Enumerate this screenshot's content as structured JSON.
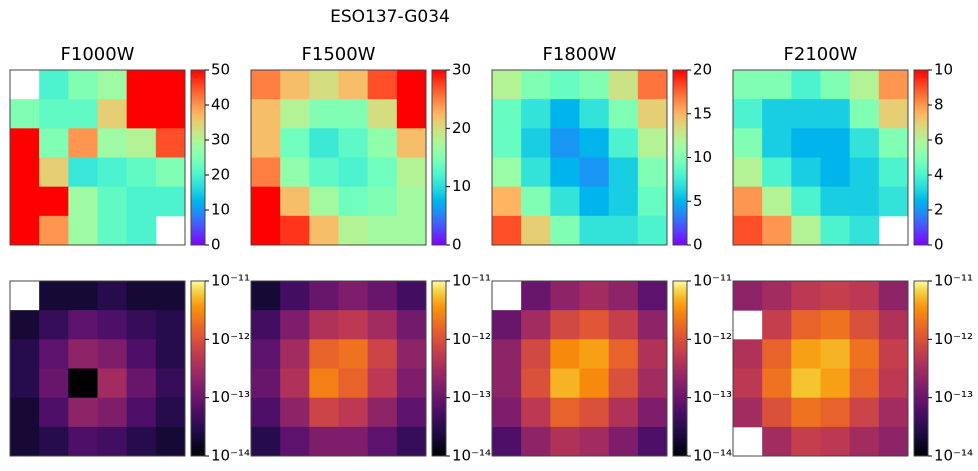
{
  "title": "ESO137-G034",
  "chart_data": [
    {
      "type": "heatmap",
      "title": "F1000W",
      "colormap": "rainbow",
      "zlim": [
        0,
        50
      ],
      "zticks": [
        0,
        10,
        20,
        30,
        40,
        50
      ],
      "values": [
        [
          null,
          20,
          25,
          28,
          50,
          50
        ],
        [
          25,
          22,
          22,
          35,
          50,
          50
        ],
        [
          50,
          25,
          40,
          28,
          30,
          45
        ],
        [
          50,
          35,
          18,
          20,
          22,
          25
        ],
        [
          50,
          50,
          28,
          22,
          20,
          20
        ],
        [
          50,
          40,
          28,
          22,
          20,
          null
        ]
      ]
    },
    {
      "type": "heatmap",
      "title": "F1500W",
      "colormap": "rainbow",
      "zlim": [
        0,
        30
      ],
      "zticks": [
        0,
        10,
        20,
        30
      ],
      "values": [
        [
          25,
          22,
          20,
          22,
          27,
          30
        ],
        [
          22,
          18,
          15,
          15,
          20,
          30
        ],
        [
          22,
          14,
          11,
          13,
          16,
          22
        ],
        [
          25,
          16,
          13,
          12,
          14,
          18
        ],
        [
          30,
          22,
          17,
          14,
          15,
          17
        ],
        [
          30,
          28,
          22,
          18,
          17,
          17
        ]
      ]
    },
    {
      "type": "heatmap",
      "title": "F1800W",
      "colormap": "rainbow",
      "zlim": [
        0,
        20
      ],
      "zticks": [
        0,
        5,
        10,
        15,
        20
      ],
      "values": [
        [
          12,
          10,
          9,
          10,
          13,
          17
        ],
        [
          9,
          7,
          5,
          7,
          10,
          14
        ],
        [
          9,
          6,
          4,
          5,
          8,
          12
        ],
        [
          11,
          7,
          5,
          4,
          6,
          10
        ],
        [
          15,
          10,
          7,
          5,
          6,
          9
        ],
        [
          18,
          14,
          10,
          7,
          7,
          8
        ]
      ]
    },
    {
      "type": "heatmap",
      "title": "F2100W",
      "colormap": "rainbow",
      "zlim": [
        0,
        10
      ],
      "zticks": [
        0,
        2,
        4,
        6,
        8,
        10
      ],
      "values": [
        [
          5,
          5,
          4,
          5,
          6,
          8
        ],
        [
          4,
          3,
          3,
          3,
          5,
          7
        ],
        [
          5,
          3,
          2.5,
          2.5,
          3.5,
          5
        ],
        [
          6,
          4,
          3,
          2.5,
          3,
          4
        ],
        [
          8,
          6,
          4,
          3,
          3,
          3.5
        ],
        [
          9,
          8,
          6,
          4,
          3.5,
          null
        ]
      ]
    },
    {
      "type": "heatmap",
      "colormap": "inferno",
      "log_scale": true,
      "zlim": [
        1e-14,
        1e-11
      ],
      "zticks": [
        {
          "value": 1e-14,
          "label": "10⁻¹⁴"
        },
        {
          "value": 1e-13,
          "label": "10⁻¹³"
        },
        {
          "value": 1e-12,
          "label": "10⁻¹²"
        },
        {
          "value": 1e-11,
          "label": "10⁻¹¹"
        }
      ],
      "values": [
        [
          null,
          2e-14,
          2e-14,
          3e-14,
          2e-14,
          2e-14
        ],
        [
          2e-14,
          4e-14,
          8e-14,
          6e-14,
          4e-14,
          3e-14
        ],
        [
          3e-14,
          8e-14,
          2e-13,
          1.5e-13,
          6e-14,
          3e-14
        ],
        [
          3e-14,
          1e-13,
          1e-14,
          3e-13,
          1e-13,
          4e-14
        ],
        [
          2e-14,
          6e-14,
          2e-13,
          1.5e-13,
          6e-14,
          3e-14
        ],
        [
          2e-14,
          3e-14,
          6e-14,
          5e-14,
          3e-14,
          2e-14
        ]
      ]
    },
    {
      "type": "heatmap",
      "colormap": "inferno",
      "log_scale": true,
      "zlim": [
        1e-14,
        1e-11
      ],
      "zticks": [
        {
          "value": 1e-14,
          "label": "10⁻¹⁴"
        },
        {
          "value": 1e-13,
          "label": "10⁻¹³"
        },
        {
          "value": 1e-12,
          "label": "10⁻¹²"
        },
        {
          "value": 1e-11,
          "label": "10⁻¹¹"
        }
      ],
      "values": [
        [
          2e-14,
          5e-14,
          1e-13,
          1.5e-13,
          1e-13,
          5e-14
        ],
        [
          5e-14,
          1.5e-13,
          4e-13,
          5e-13,
          3e-13,
          1.2e-13
        ],
        [
          8e-14,
          3e-13,
          1.5e-12,
          2e-12,
          7e-13,
          2e-13
        ],
        [
          1e-13,
          4e-13,
          2.5e-12,
          1.5e-12,
          5e-13,
          1.5e-13
        ],
        [
          6e-14,
          2e-13,
          7e-13,
          5e-13,
          2e-13,
          8e-14
        ],
        [
          3e-14,
          8e-14,
          1.5e-13,
          1.5e-13,
          8e-14,
          4e-14
        ]
      ]
    },
    {
      "type": "heatmap",
      "colormap": "inferno",
      "log_scale": true,
      "zlim": [
        1e-14,
        1e-11
      ],
      "zticks": [
        {
          "value": 1e-14,
          "label": "10⁻¹⁴"
        },
        {
          "value": 1e-13,
          "label": "10⁻¹³"
        },
        {
          "value": 1e-12,
          "label": "10⁻¹²"
        },
        {
          "value": 1e-11,
          "label": "10⁻¹¹"
        }
      ],
      "values": [
        [
          null,
          1e-13,
          2e-13,
          3e-13,
          2e-13,
          8e-14
        ],
        [
          1e-13,
          3e-13,
          8e-13,
          1.2e-12,
          6e-13,
          2e-13
        ],
        [
          2e-13,
          8e-13,
          3e-12,
          4e-12,
          1.5e-12,
          4e-13
        ],
        [
          2e-13,
          1e-12,
          5e-12,
          3e-12,
          1e-12,
          3e-13
        ],
        [
          1.5e-13,
          5e-13,
          1.5e-12,
          1e-12,
          4e-13,
          1.5e-13
        ],
        [
          6e-14,
          2e-13,
          4e-13,
          3e-13,
          1.5e-13,
          6e-14
        ]
      ]
    },
    {
      "type": "heatmap",
      "colormap": "inferno",
      "log_scale": true,
      "zlim": [
        1e-14,
        1e-11
      ],
      "zticks": [
        {
          "value": 1e-14,
          "label": "10⁻¹⁴"
        },
        {
          "value": 1e-13,
          "label": "10⁻¹³"
        },
        {
          "value": 1e-12,
          "label": "10⁻¹²"
        },
        {
          "value": 1e-11,
          "label": "10⁻¹¹"
        }
      ],
      "values": [
        [
          2e-13,
          3e-13,
          5e-13,
          6e-13,
          5e-13,
          2e-13
        ],
        [
          null,
          6e-13,
          1.5e-12,
          2e-12,
          1e-12,
          4e-13
        ],
        [
          4e-13,
          1.5e-12,
          4e-12,
          5e-12,
          2e-12,
          6e-13
        ],
        [
          5e-13,
          2e-12,
          6e-12,
          4e-12,
          1.5e-12,
          5e-13
        ],
        [
          3e-13,
          1e-12,
          2e-12,
          1.5e-12,
          7e-13,
          3e-13
        ],
        [
          null,
          3e-13,
          6e-13,
          5e-13,
          3e-13,
          2e-13
        ]
      ]
    }
  ]
}
